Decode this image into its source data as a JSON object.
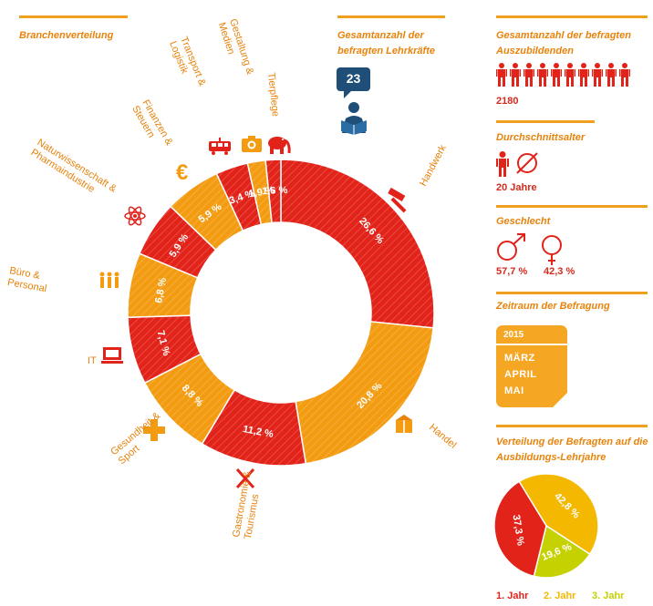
{
  "header": {
    "branchen_title": "Branchenverteilung",
    "lehrkraefte_title": "Gesamtanzahl der befragten Lehrkräfte",
    "lehrkraefte_count": "23"
  },
  "sidebar": {
    "auszubildende_title": "Gesamtanzahl der befragten Auszubildenden",
    "auszubildende_count": "2180",
    "alter_title": "Durchschnittsalter",
    "alter_value": "20 Jahre",
    "geschlecht_title": "Geschlecht",
    "male_value": "57,7 %",
    "female_value": "42,3 %",
    "zeitraum_title": "Zeitraum der Befragung",
    "zeitraum_year": "2015",
    "zeitraum_months": [
      "MÄRZ",
      "APRIL",
      "MAI"
    ],
    "lehrjahre_title": "Verteilung der Befragten auf die Ausbildungs-Lehrjahre"
  },
  "colors": {
    "red": "#e2231a",
    "orange": "#f39c12",
    "accent": "#e8830c",
    "yellow": "#f5b800",
    "lime": "#c5d100"
  },
  "chart_data": [
    {
      "type": "pie",
      "variant": "donut",
      "title": "Branchenverteilung",
      "categories": [
        "Handwerk",
        "Handel",
        "Gastronomie & Tourismus",
        "Gesundheit & Sport",
        "IT",
        "Büro & Personal",
        "Naturwissenschaft & Pharmaindustrie",
        "Finanzen & Steuern",
        "Transport & Logistik",
        "Gestaltung & Medien",
        "Tierpflege"
      ],
      "values": [
        26.6,
        20.8,
        11.2,
        8.8,
        7.1,
        6.8,
        5.9,
        5.9,
        3.4,
        1.9,
        1.6
      ],
      "labels": [
        "26,6 %",
        "20,8 %",
        "11,2 %",
        "8,8 %",
        "7,1 %",
        "6,8 %",
        "5,9 %",
        "5,9 %",
        "3,4 %",
        "1,9 %",
        "1,6 %"
      ],
      "icons": [
        "hammer-icon",
        "box-icon",
        "cutlery-icon",
        "plus-icon",
        "laptop-icon",
        "people-icon",
        "atom-icon",
        "euro-icon",
        "tram-icon",
        "camera-icon",
        "elephant-icon"
      ],
      "colors": [
        "#e2231a",
        "#f39c12",
        "#e2231a",
        "#f39c12",
        "#e2231a",
        "#f39c12",
        "#e2231a",
        "#f39c12",
        "#e2231a",
        "#f39c12",
        "#e2231a"
      ]
    },
    {
      "type": "pie",
      "title": "Verteilung der Befragten auf die Ausbildungs-Lehrjahre",
      "categories": [
        "1. Jahr",
        "2. Jahr",
        "3. Jahr"
      ],
      "values": [
        37.3,
        42.8,
        19.6
      ],
      "labels": [
        "37,3 %",
        "42,8 %",
        "19,6 %"
      ],
      "colors": [
        "#e2231a",
        "#f5b800",
        "#c5d100"
      ],
      "legend": "bottom"
    }
  ]
}
